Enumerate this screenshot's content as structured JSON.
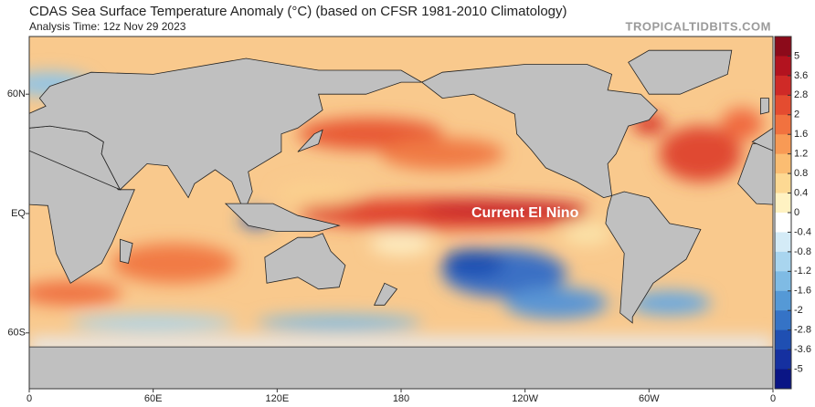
{
  "header": {
    "title": "CDAS Sea Surface Temperature Anomaly (°C) (based on CFSR 1981-2010 Climatology)",
    "subtitle": "Analysis Time: 12z Nov 29 2023",
    "source": "TROPICALTIDBITS.COM"
  },
  "map": {
    "annotation": "Current El Nino",
    "lat_labels": [
      "60N",
      "EQ",
      "60S"
    ],
    "lon_labels": [
      "0",
      "60E",
      "120E",
      "180",
      "120W",
      "60W",
      "0"
    ]
  },
  "colorbar": {
    "ticks": [
      5,
      3.6,
      2.8,
      2,
      1.6,
      1.2,
      0.8,
      0.4,
      0,
      -0.4,
      -0.8,
      -1.2,
      -1.6,
      -2,
      -2.8,
      -3.6,
      -5
    ],
    "colors": [
      "#8c0a1a",
      "#b3131f",
      "#cf2a27",
      "#e44c30",
      "#f1723f",
      "#f89a55",
      "#fbbd72",
      "#fdd993",
      "#fff2c2",
      "#ffffff",
      "#d4ebf7",
      "#a9d5ef",
      "#7fbbe4",
      "#5599d6",
      "#3573c6",
      "#1f4fb2",
      "#1530a0",
      "#0a1585"
    ]
  }
}
